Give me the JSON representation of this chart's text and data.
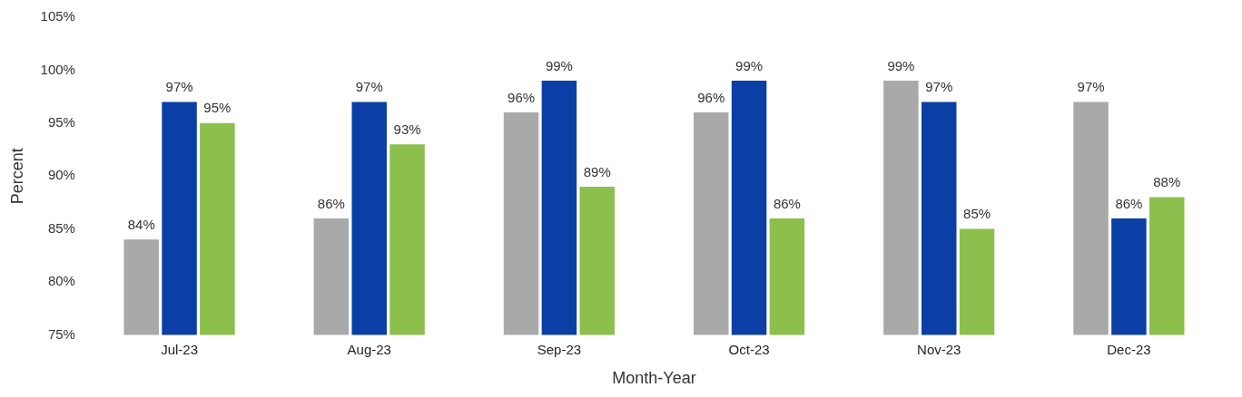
{
  "chart_data": {
    "type": "bar",
    "xlabel": "Month-Year",
    "ylabel": "Percent",
    "categories": [
      "Jul-23",
      "Aug-23",
      "Sep-23",
      "Oct-23",
      "Nov-23",
      "Dec-23"
    ],
    "series": [
      {
        "color": "#a9a9a9",
        "values": [
          84,
          86,
          96,
          96,
          99,
          97
        ],
        "value_labels": [
          "84%",
          "86%",
          "96%",
          "96%",
          "99%",
          "97%"
        ]
      },
      {
        "color": "#0b3fa6",
        "values": [
          97,
          97,
          99,
          99,
          97,
          86
        ],
        "value_labels": [
          "97%",
          "97%",
          "99%",
          "99%",
          "97%",
          "86%"
        ]
      },
      {
        "color": "#8dbf4c",
        "values": [
          95,
          93,
          89,
          86,
          85,
          88
        ],
        "value_labels": [
          "95%",
          "93%",
          "89%",
          "86%",
          "85%",
          "88%"
        ]
      }
    ],
    "ylim": [
      75,
      105
    ],
    "yticks": [
      {
        "value": 75,
        "label": "75%"
      },
      {
        "value": 80,
        "label": "80%"
      },
      {
        "value": 85,
        "label": "85%"
      },
      {
        "value": 90,
        "label": "90%"
      },
      {
        "value": 95,
        "label": "95%"
      },
      {
        "value": 100,
        "label": "100%"
      },
      {
        "value": 105,
        "label": "105%"
      }
    ],
    "grid": false,
    "legend": false
  }
}
